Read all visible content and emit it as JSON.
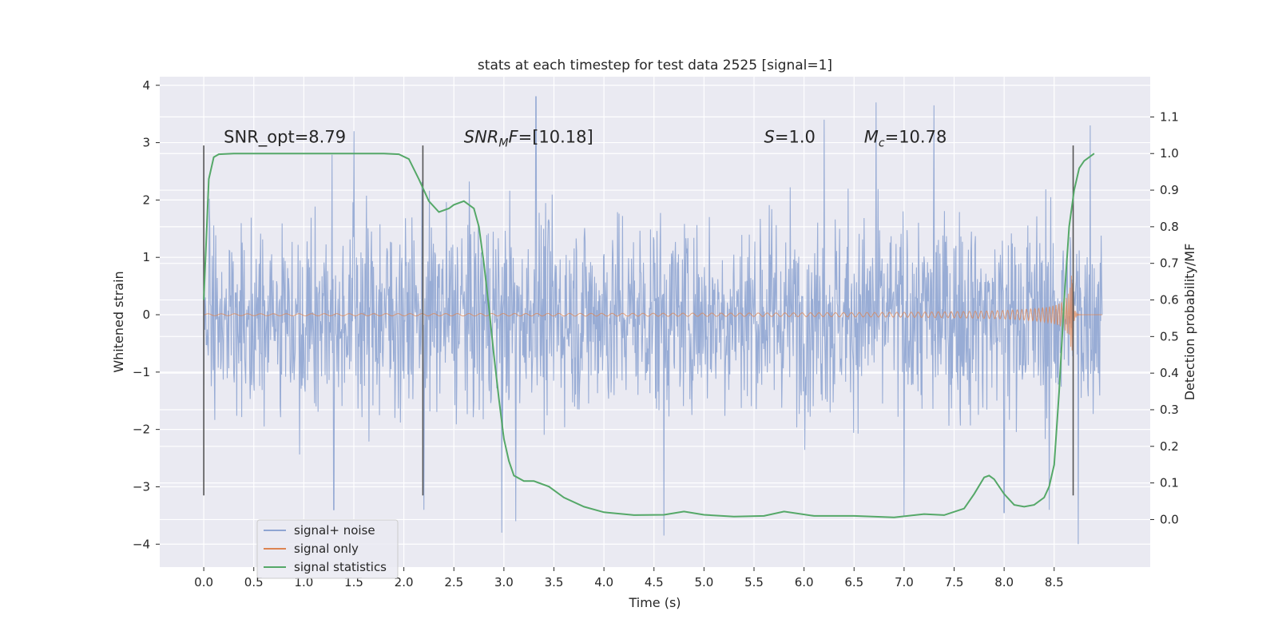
{
  "chart_data": {
    "type": "line",
    "title": "stats at each timestep for test data 2525 [signal=1]",
    "xlabel": "Time (s)",
    "ylabel": "Whitened strain",
    "y2label": "Detection probability/MF",
    "xlim": [
      -0.44,
      9.46
    ],
    "ylim": [
      -4.4,
      4.15
    ],
    "y2lim": [
      -0.13,
      1.21
    ],
    "x_ticks": [
      0.0,
      0.5,
      1.0,
      1.5,
      2.0,
      2.5,
      3.0,
      3.5,
      4.0,
      4.5,
      5.0,
      5.5,
      6.0,
      6.5,
      7.0,
      7.5,
      8.0,
      8.5
    ],
    "x_tick_labels": [
      "0.0",
      "0.5",
      "1.0",
      "1.5",
      "2.0",
      "2.5",
      "3.0",
      "3.5",
      "4.0",
      "4.5",
      "5.0",
      "5.5",
      "6.0",
      "6.5",
      "7.0",
      "7.5",
      "8.0",
      "8.5"
    ],
    "y_ticks": [
      -4,
      -3,
      -2,
      -1,
      0,
      1,
      2,
      3,
      4
    ],
    "y_tick_labels": [
      "−4",
      "−3",
      "−2",
      "−1",
      "0",
      "1",
      "2",
      "3",
      "4"
    ],
    "y2_ticks": [
      0.0,
      0.1,
      0.2,
      0.3,
      0.4,
      0.5,
      0.6,
      0.7,
      0.8,
      0.9,
      1.0,
      1.1
    ],
    "y2_tick_labels": [
      "0.0",
      "0.1",
      "0.2",
      "0.3",
      "0.4",
      "0.5",
      "0.6",
      "0.7",
      "0.8",
      "0.9",
      "1.0",
      "1.1"
    ],
    "grid": true,
    "legend_placement": "lower-left",
    "annotations": [
      {
        "x": 0.2,
        "y": 3.0,
        "parts": [
          {
            "t": "SNR_opt=8.79"
          }
        ]
      },
      {
        "x": 2.6,
        "y": 3.0,
        "parts": [
          {
            "t": "SNR",
            "i": true
          },
          {
            "t": "M",
            "i": true,
            "sub": true
          },
          {
            "t": "F",
            "i": true
          },
          {
            "t": "=[10.18]"
          }
        ]
      },
      {
        "x": 5.6,
        "y": 3.0,
        "parts": [
          {
            "t": "S",
            "i": true
          },
          {
            "t": "=1.0"
          }
        ]
      },
      {
        "x": 6.6,
        "y": 3.0,
        "parts": [
          {
            "t": "M",
            "i": true
          },
          {
            "t": "c",
            "i": true,
            "sub": true
          },
          {
            "t": "=10.78"
          }
        ]
      }
    ],
    "vlines": [
      {
        "x": 0.0,
        "y": [
          -3.15,
          2.95
        ]
      },
      {
        "x": 2.19,
        "y": [
          -3.15,
          2.95
        ]
      },
      {
        "x": 8.69,
        "y": [
          -3.15,
          2.95
        ]
      }
    ],
    "series": [
      {
        "name": "signal+ noise",
        "color": "#8fa5d2",
        "kind": "noise",
        "x_range": [
          0.0,
          8.98
        ],
        "typical_abs": 1.7,
        "peaks": [
          {
            "x": 3.32,
            "y": 3.8
          },
          {
            "x": 6.72,
            "y": 3.7
          },
          {
            "x": 7.3,
            "y": 3.65
          },
          {
            "x": 8.86,
            "y": 3.3
          },
          {
            "x": 6.2,
            "y": 3.4
          },
          {
            "x": 1.5,
            "y": 3.2
          },
          {
            "x": 4.6,
            "y": -3.85
          },
          {
            "x": 2.98,
            "y": -3.8
          },
          {
            "x": 8.74,
            "y": -4.0
          },
          {
            "x": 3.12,
            "y": -3.6
          },
          {
            "x": 7.0,
            "y": -3.5
          },
          {
            "x": 1.3,
            "y": -3.4
          },
          {
            "x": 2.2,
            "y": -3.4
          },
          {
            "x": 8.0,
            "y": -3.45
          },
          {
            "x": 8.45,
            "y": -3.4
          }
        ]
      },
      {
        "name": "signal only",
        "color": "#dd8452",
        "kind": "chirp",
        "x_range": [
          0.0,
          8.98
        ],
        "merger_time": 8.69,
        "peak_amplitude": 0.82
      },
      {
        "name": "signal statistics",
        "color": "#55a868",
        "kind": "line",
        "axis": "right",
        "x": [
          0.0,
          0.05,
          0.1,
          0.15,
          0.3,
          0.6,
          1.0,
          1.5,
          1.8,
          1.95,
          2.05,
          2.15,
          2.25,
          2.35,
          2.45,
          2.5,
          2.6,
          2.7,
          2.75,
          2.8,
          2.85,
          2.9,
          2.95,
          3.0,
          3.05,
          3.1,
          3.2,
          3.3,
          3.45,
          3.6,
          3.8,
          4.0,
          4.3,
          4.6,
          4.8,
          5.0,
          5.3,
          5.6,
          5.8,
          6.1,
          6.5,
          6.9,
          7.2,
          7.4,
          7.6,
          7.7,
          7.8,
          7.85,
          7.9,
          8.0,
          8.1,
          8.2,
          8.3,
          8.4,
          8.45,
          8.5,
          8.55,
          8.6,
          8.65,
          8.7,
          8.75,
          8.8,
          8.9
        ],
        "y": [
          0.6,
          0.93,
          0.99,
          0.998,
          1.0,
          1.0,
          1.0,
          1.0,
          1.0,
          0.998,
          0.985,
          0.93,
          0.87,
          0.84,
          0.85,
          0.86,
          0.87,
          0.85,
          0.8,
          0.7,
          0.58,
          0.45,
          0.33,
          0.22,
          0.16,
          0.12,
          0.105,
          0.105,
          0.09,
          0.06,
          0.035,
          0.02,
          0.012,
          0.013,
          0.022,
          0.013,
          0.008,
          0.01,
          0.022,
          0.01,
          0.01,
          0.006,
          0.015,
          0.012,
          0.03,
          0.07,
          0.115,
          0.12,
          0.11,
          0.07,
          0.04,
          0.035,
          0.04,
          0.06,
          0.09,
          0.15,
          0.35,
          0.6,
          0.8,
          0.9,
          0.96,
          0.98,
          1.0
        ]
      }
    ]
  }
}
